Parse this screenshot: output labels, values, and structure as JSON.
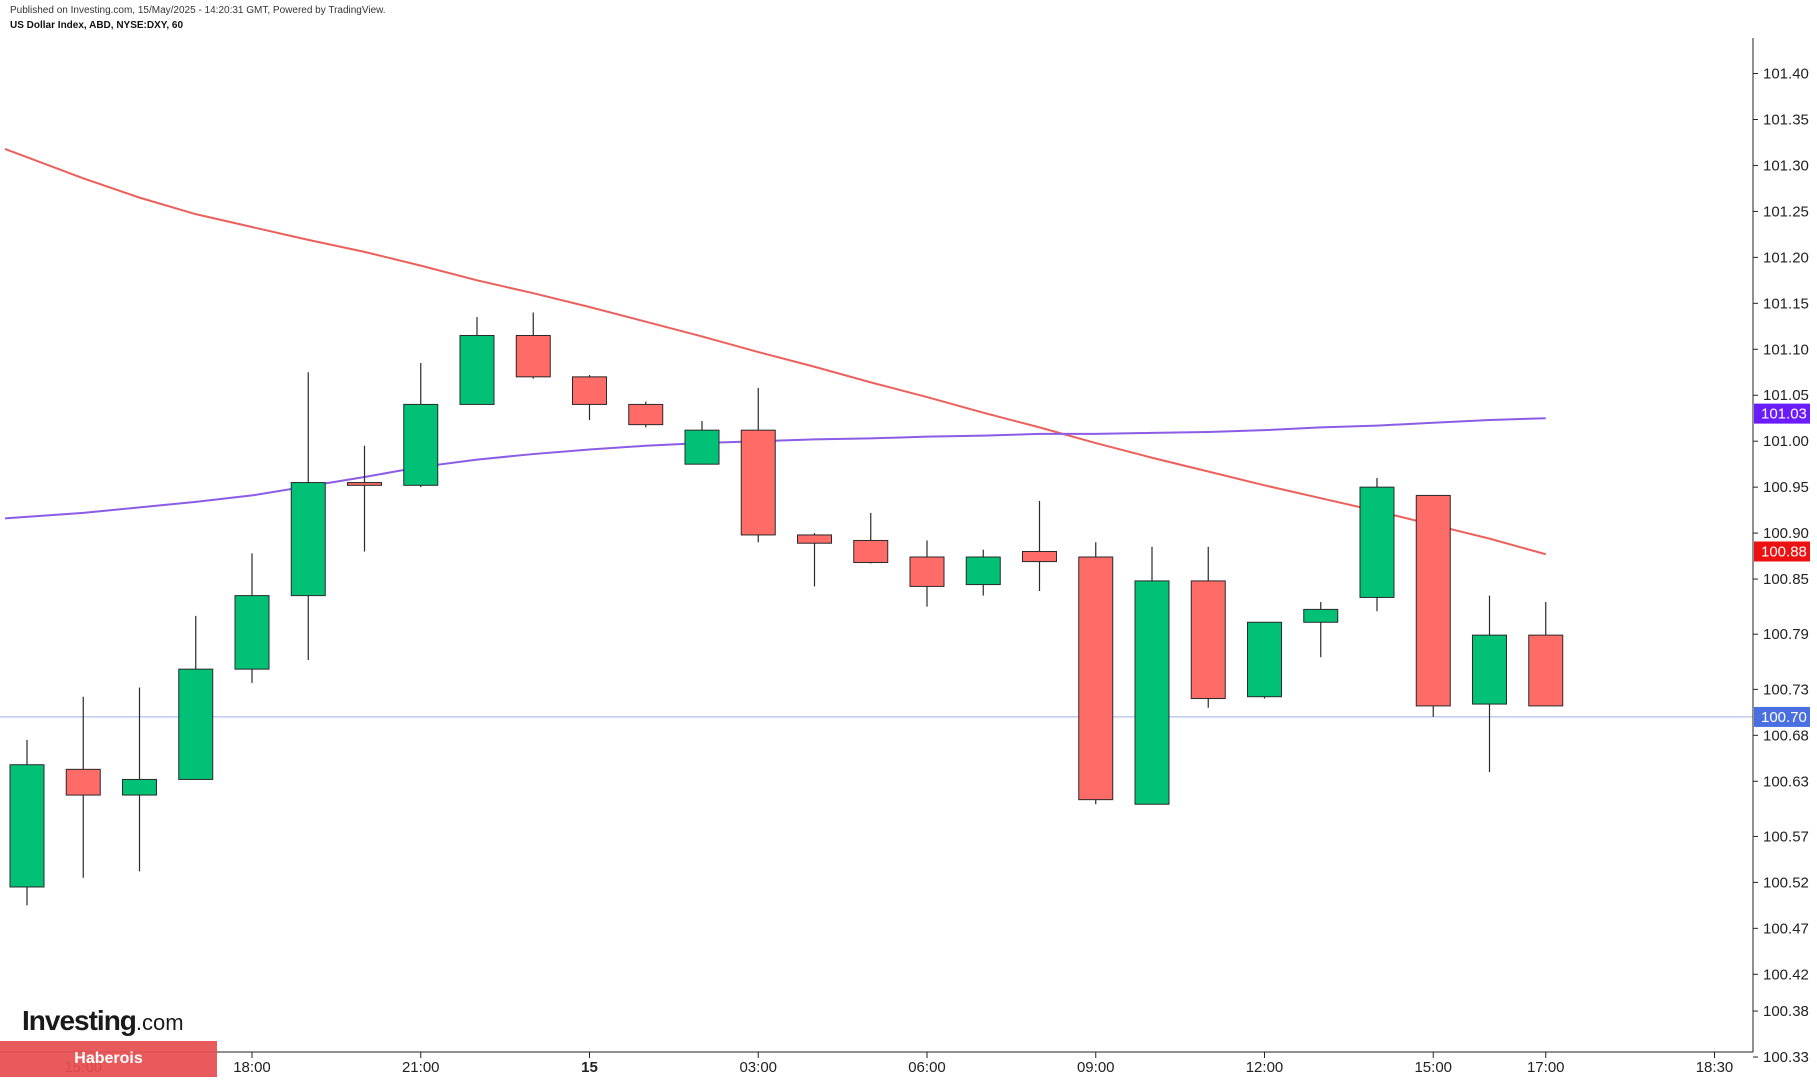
{
  "header": {
    "published": "Published on Investing.com, 15/May/2025 - 14:20:31 GMT, Powered by TradingView.",
    "symbol": "US Dollar Index, ABD, NYSE:DXY, 60"
  },
  "branding": {
    "logo_main": "Investing",
    "logo_suffix": ".com",
    "watermark": "Haberois"
  },
  "colors": {
    "up": "#00c176",
    "down": "#ff6b66",
    "ma_red": "#ec5f5a",
    "ma_purple": "#8c5ce6",
    "current": "#4a6fe0",
    "badge_purple": "#6a1bff",
    "badge_red": "#ee1111"
  },
  "chart_data": {
    "type": "candlestick",
    "title": "",
    "ylim": [
      100.305,
      101.48
    ],
    "y_ticks": [
      {
        "value": 101.4,
        "label": "101.40"
      },
      {
        "value": 101.35,
        "label": "101.35"
      },
      {
        "value": 101.3,
        "label": "101.30"
      },
      {
        "value": 101.25,
        "label": "101.25"
      },
      {
        "value": 101.2,
        "label": "101.20"
      },
      {
        "value": 101.15,
        "label": "101.15"
      },
      {
        "value": 101.1,
        "label": "101.10"
      },
      {
        "value": 101.05,
        "label": "101.05"
      },
      {
        "value": 101.0,
        "label": "101.00"
      },
      {
        "value": 100.95,
        "label": "100.95"
      },
      {
        "value": 100.9,
        "label": "100.90"
      },
      {
        "value": 100.85,
        "label": "100.85"
      },
      {
        "value": 100.79,
        "label": "100.79"
      },
      {
        "value": 100.73,
        "label": "100.73"
      },
      {
        "value": 100.68,
        "label": "100.68"
      },
      {
        "value": 100.63,
        "label": "100.63"
      },
      {
        "value": 100.57,
        "label": "100.57"
      },
      {
        "value": 100.52,
        "label": "100.52"
      },
      {
        "value": 100.47,
        "label": "100.47"
      },
      {
        "value": 100.42,
        "label": "100.42"
      },
      {
        "value": 100.38,
        "label": "100.38"
      },
      {
        "value": 100.33,
        "label": "100.33"
      }
    ],
    "x_ticks": [
      {
        "index": 1,
        "label": "15:00"
      },
      {
        "index": 4,
        "label": "18:00"
      },
      {
        "index": 7,
        "label": "21:00"
      },
      {
        "index": 10,
        "label": "15"
      },
      {
        "index": 13,
        "label": "03:00"
      },
      {
        "index": 16,
        "label": "06:00"
      },
      {
        "index": 19,
        "label": "09:00"
      },
      {
        "index": 22,
        "label": "12:00"
      },
      {
        "index": 25,
        "label": "15:00"
      },
      {
        "index": 27,
        "label": "17:00"
      },
      {
        "index": 30,
        "label": "18:30"
      }
    ],
    "candles": [
      {
        "o": 100.515,
        "h": 100.675,
        "l": 100.495,
        "c": 100.648
      },
      {
        "o": 100.643,
        "h": 100.722,
        "l": 100.525,
        "c": 100.615
      },
      {
        "o": 100.615,
        "h": 100.732,
        "l": 100.532,
        "c": 100.632
      },
      {
        "o": 100.632,
        "h": 100.81,
        "l": 100.632,
        "c": 100.752
      },
      {
        "o": 100.752,
        "h": 100.878,
        "l": 100.737,
        "c": 100.832
      },
      {
        "o": 100.832,
        "h": 101.075,
        "l": 100.762,
        "c": 100.955
      },
      {
        "o": 100.955,
        "h": 100.995,
        "l": 100.88,
        "c": 100.952
      },
      {
        "o": 100.952,
        "h": 101.085,
        "l": 100.95,
        "c": 101.04
      },
      {
        "o": 101.04,
        "h": 101.135,
        "l": 101.04,
        "c": 101.115
      },
      {
        "o": 101.115,
        "h": 101.14,
        "l": 101.068,
        "c": 101.07
      },
      {
        "o": 101.07,
        "h": 101.072,
        "l": 101.023,
        "c": 101.04
      },
      {
        "o": 101.04,
        "h": 101.043,
        "l": 101.015,
        "c": 101.018
      },
      {
        "o": 100.975,
        "h": 101.022,
        "l": 100.975,
        "c": 101.012
      },
      {
        "o": 101.012,
        "h": 101.058,
        "l": 100.89,
        "c": 100.898
      },
      {
        "o": 100.898,
        "h": 100.9,
        "l": 100.842,
        "c": 100.889
      },
      {
        "o": 100.892,
        "h": 100.922,
        "l": 100.867,
        "c": 100.868
      },
      {
        "o": 100.874,
        "h": 100.892,
        "l": 100.82,
        "c": 100.842
      },
      {
        "o": 100.844,
        "h": 100.882,
        "l": 100.832,
        "c": 100.874
      },
      {
        "o": 100.88,
        "h": 100.935,
        "l": 100.837,
        "c": 100.869
      },
      {
        "o": 100.874,
        "h": 100.89,
        "l": 100.605,
        "c": 100.61
      },
      {
        "o": 100.605,
        "h": 100.885,
        "l": 100.605,
        "c": 100.848
      },
      {
        "o": 100.848,
        "h": 100.885,
        "l": 100.71,
        "c": 100.72
      },
      {
        "o": 100.722,
        "h": 100.803,
        "l": 100.72,
        "c": 100.803
      },
      {
        "o": 100.803,
        "h": 100.825,
        "l": 100.765,
        "c": 100.817
      },
      {
        "o": 100.83,
        "h": 100.96,
        "l": 100.815,
        "c": 100.95
      },
      {
        "o": 100.941,
        "h": 100.941,
        "l": 100.7,
        "c": 100.712
      },
      {
        "o": 100.714,
        "h": 100.832,
        "l": 100.64,
        "c": 100.789
      },
      {
        "o": 100.789,
        "h": 100.825,
        "l": 100.712,
        "c": 100.712
      }
    ],
    "ma_red": [
      101.318,
      101.286,
      101.265,
      101.247,
      101.233,
      101.219,
      101.206,
      101.191,
      101.175,
      101.161,
      101.146,
      101.13,
      101.114,
      101.097,
      101.081,
      101.064,
      101.048,
      101.031,
      101.015,
      100.998,
      100.982,
      100.967,
      100.952,
      100.938,
      100.924,
      100.909,
      100.894,
      100.877
    ],
    "ma_purple": [
      100.916,
      100.922,
      100.928,
      100.934,
      100.941,
      100.951,
      100.961,
      100.972,
      100.98,
      100.986,
      100.991,
      100.995,
      100.998,
      101.0,
      101.002,
      101.003,
      101.005,
      101.006,
      101.008,
      101.008,
      101.009,
      101.01,
      101.012,
      101.015,
      101.017,
      101.02,
      101.023,
      101.025
    ],
    "current_price": 100.7,
    "badges": [
      {
        "value": 101.03,
        "label": "101.03",
        "color": "#6a1bff"
      },
      {
        "value": 100.88,
        "label": "100.88",
        "color": "#ee1111"
      },
      {
        "value": 100.7,
        "label": "100.70",
        "color": "#4a6fe0"
      }
    ]
  }
}
